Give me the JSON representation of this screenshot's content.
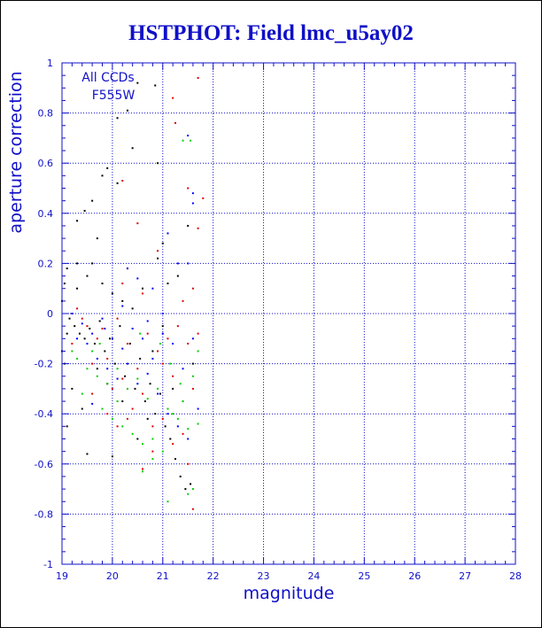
{
  "chart_data": {
    "type": "scatter",
    "title": "HSTPHOT: Field lmc_u5ay02",
    "xlabel": "magnitude",
    "ylabel": "aperture correction",
    "xlim": [
      19,
      28
    ],
    "ylim": [
      -1,
      1
    ],
    "xticks": [
      "19",
      "20",
      "21",
      "22",
      "23",
      "24",
      "25",
      "26",
      "27",
      "28"
    ],
    "yticks": [
      "-1",
      "-0.8",
      "-0.6",
      "-0.4",
      "-0.2",
      "0",
      "0.2",
      "0.4",
      "0.6",
      "0.8",
      "1"
    ],
    "grid": true,
    "annotations": [
      "All CCDs",
      "F555W"
    ],
    "colors": {
      "axis": "#1010c8",
      "grid": "#1010c8",
      "series": [
        "#000000",
        "#e00000",
        "#00d000",
        "#0000ff"
      ]
    },
    "series": [
      {
        "values": [
          [
            19.0,
            0.05
          ],
          [
            19.05,
            0.12
          ],
          [
            19.1,
            0.18
          ],
          [
            19.2,
            0.0
          ],
          [
            19.3,
            0.37
          ],
          [
            19.45,
            0.41
          ],
          [
            19.6,
            0.45
          ],
          [
            19.8,
            0.55
          ],
          [
            19.9,
            0.58
          ],
          [
            20.1,
            0.78
          ],
          [
            20.3,
            0.81
          ],
          [
            20.5,
            0.92
          ],
          [
            20.85,
            0.91
          ],
          [
            20.4,
            0.66
          ],
          [
            20.9,
            0.6
          ],
          [
            20.1,
            0.52
          ],
          [
            19.7,
            0.3
          ],
          [
            19.3,
            0.2
          ],
          [
            19.5,
            0.15
          ],
          [
            19.8,
            0.12
          ],
          [
            20.0,
            0.08
          ],
          [
            20.2,
            0.05
          ],
          [
            20.4,
            0.02
          ],
          [
            20.6,
            0.1
          ],
          [
            20.9,
            0.22
          ],
          [
            21.0,
            0.28
          ],
          [
            19.15,
            -0.02
          ],
          [
            19.25,
            -0.05
          ],
          [
            19.35,
            -0.08
          ],
          [
            19.45,
            -0.1
          ],
          [
            19.55,
            -0.06
          ],
          [
            19.65,
            -0.12
          ],
          [
            19.75,
            -0.03
          ],
          [
            19.85,
            -0.15
          ],
          [
            19.95,
            -0.1
          ],
          [
            20.05,
            -0.2
          ],
          [
            20.15,
            -0.05
          ],
          [
            20.25,
            -0.25
          ],
          [
            20.35,
            -0.12
          ],
          [
            20.45,
            -0.3
          ],
          [
            20.55,
            -0.18
          ],
          [
            20.65,
            -0.35
          ],
          [
            20.75,
            -0.28
          ],
          [
            20.85,
            -0.4
          ],
          [
            20.95,
            -0.32
          ],
          [
            21.05,
            -0.45
          ],
          [
            21.15,
            -0.5
          ],
          [
            21.25,
            -0.58
          ],
          [
            21.35,
            -0.65
          ],
          [
            21.45,
            -0.7
          ],
          [
            21.55,
            -0.68
          ],
          [
            19.1,
            -0.45
          ],
          [
            19.2,
            -0.3
          ],
          [
            19.4,
            -0.38
          ],
          [
            19.5,
            -0.56
          ],
          [
            19.7,
            -0.22
          ],
          [
            19.9,
            -0.28
          ],
          [
            20.0,
            -0.57
          ],
          [
            20.2,
            -0.35
          ],
          [
            20.5,
            -0.5
          ],
          [
            20.7,
            -0.42
          ],
          [
            21.2,
            -0.3
          ],
          [
            21.4,
            -0.35
          ],
          [
            21.6,
            -0.2
          ],
          [
            21.3,
            0.15
          ],
          [
            21.5,
            0.35
          ],
          [
            21.1,
            0.12
          ],
          [
            19.0,
            -0.15
          ],
          [
            19.05,
            -0.2
          ],
          [
            19.1,
            -0.08
          ],
          [
            19.3,
            0.1
          ],
          [
            19.6,
            0.2
          ],
          [
            20.8,
            -0.15
          ],
          [
            21.0,
            -0.05
          ],
          [
            20.3,
            0.18
          ]
        ]
      },
      {
        "values": [
          [
            21.7,
            0.94
          ],
          [
            21.2,
            0.86
          ],
          [
            21.25,
            0.76
          ],
          [
            20.2,
            0.53
          ],
          [
            20.5,
            0.36
          ],
          [
            21.5,
            0.5
          ],
          [
            21.8,
            0.46
          ],
          [
            21.7,
            0.34
          ],
          [
            20.9,
            0.25
          ],
          [
            21.6,
            0.1
          ],
          [
            21.4,
            0.05
          ],
          [
            20.2,
            0.12
          ],
          [
            20.6,
            0.08
          ],
          [
            19.3,
            0.02
          ],
          [
            19.5,
            -0.05
          ],
          [
            19.7,
            -0.1
          ],
          [
            19.9,
            -0.18
          ],
          [
            20.1,
            -0.02
          ],
          [
            20.3,
            -0.12
          ],
          [
            20.5,
            -0.22
          ],
          [
            20.7,
            -0.08
          ],
          [
            20.9,
            -0.15
          ],
          [
            21.1,
            -0.1
          ],
          [
            21.3,
            -0.05
          ],
          [
            21.5,
            -0.12
          ],
          [
            21.7,
            -0.08
          ],
          [
            19.2,
            -0.12
          ],
          [
            19.4,
            -0.02
          ],
          [
            19.6,
            -0.2
          ],
          [
            19.8,
            -0.06
          ],
          [
            20.0,
            -0.3
          ],
          [
            20.2,
            -0.26
          ],
          [
            20.4,
            -0.38
          ],
          [
            20.6,
            -0.32
          ],
          [
            20.8,
            -0.45
          ],
          [
            21.0,
            -0.42
          ],
          [
            21.2,
            -0.52
          ],
          [
            21.4,
            -0.48
          ],
          [
            21.6,
            -0.78
          ],
          [
            21.5,
            -0.6
          ],
          [
            20.6,
            -0.62
          ],
          [
            19.9,
            -0.4
          ],
          [
            20.1,
            -0.45
          ],
          [
            21.0,
            -0.2
          ],
          [
            21.2,
            -0.25
          ],
          [
            21.6,
            -0.3
          ],
          [
            19.6,
            -0.32
          ],
          [
            20.3,
            -0.42
          ],
          [
            20.8,
            -0.55
          ]
        ]
      },
      {
        "values": [
          [
            21.4,
            0.69
          ],
          [
            21.55,
            0.69
          ],
          [
            21.6,
            -0.7
          ],
          [
            21.5,
            -0.72
          ],
          [
            20.6,
            -0.63
          ],
          [
            20.8,
            -0.58
          ],
          [
            21.1,
            -0.75
          ],
          [
            19.3,
            -0.18
          ],
          [
            19.5,
            -0.22
          ],
          [
            19.7,
            -0.25
          ],
          [
            19.9,
            -0.28
          ],
          [
            20.1,
            -0.22
          ],
          [
            20.3,
            -0.3
          ],
          [
            20.5,
            -0.26
          ],
          [
            20.7,
            -0.34
          ],
          [
            20.9,
            -0.3
          ],
          [
            21.1,
            -0.38
          ],
          [
            21.3,
            -0.42
          ],
          [
            21.5,
            -0.46
          ],
          [
            21.7,
            -0.44
          ],
          [
            19.4,
            -0.32
          ],
          [
            19.6,
            -0.15
          ],
          [
            19.8,
            -0.38
          ],
          [
            20.0,
            -0.42
          ],
          [
            20.2,
            -0.45
          ],
          [
            20.4,
            -0.48
          ],
          [
            20.6,
            -0.52
          ],
          [
            20.8,
            -0.5
          ],
          [
            21.0,
            -0.55
          ],
          [
            21.2,
            -0.4
          ],
          [
            21.4,
            -0.35
          ],
          [
            21.6,
            -0.25
          ],
          [
            21.7,
            -0.15
          ],
          [
            19.2,
            -0.15
          ],
          [
            20.55,
            -0.08
          ],
          [
            20.95,
            -0.12
          ],
          [
            21.15,
            -0.2
          ],
          [
            21.35,
            -0.28
          ],
          [
            20.1,
            -0.35
          ],
          [
            19.75,
            -0.12
          ]
        ]
      },
      {
        "values": [
          [
            21.5,
            0.71
          ],
          [
            21.6,
            0.44
          ],
          [
            21.6,
            0.48
          ],
          [
            21.1,
            0.32
          ],
          [
            20.3,
            0.18
          ],
          [
            20.5,
            0.14
          ],
          [
            20.8,
            0.1
          ],
          [
            21.3,
            0.2
          ],
          [
            21.5,
            0.2
          ],
          [
            19.2,
            0.0
          ],
          [
            19.4,
            -0.04
          ],
          [
            19.6,
            -0.08
          ],
          [
            19.8,
            -0.02
          ],
          [
            20.0,
            -0.1
          ],
          [
            20.2,
            -0.14
          ],
          [
            20.4,
            -0.06
          ],
          [
            20.6,
            -0.1
          ],
          [
            20.8,
            -0.18
          ],
          [
            21.0,
            -0.08
          ],
          [
            21.2,
            -0.12
          ],
          [
            21.4,
            -0.22
          ],
          [
            21.6,
            -0.1
          ],
          [
            19.3,
            -0.1
          ],
          [
            19.5,
            -0.12
          ],
          [
            19.7,
            -0.18
          ],
          [
            19.9,
            -0.22
          ],
          [
            20.1,
            -0.26
          ],
          [
            20.3,
            -0.2
          ],
          [
            20.5,
            -0.28
          ],
          [
            20.7,
            -0.24
          ],
          [
            20.9,
            -0.32
          ],
          [
            21.1,
            -0.4
          ],
          [
            21.3,
            -0.45
          ],
          [
            21.5,
            -0.5
          ],
          [
            21.7,
            -0.38
          ],
          [
            20.2,
            0.03
          ],
          [
            20.7,
            -0.03
          ],
          [
            21.0,
            0.0
          ],
          [
            19.6,
            -0.36
          ],
          [
            19.85,
            -0.06
          ]
        ]
      }
    ]
  }
}
